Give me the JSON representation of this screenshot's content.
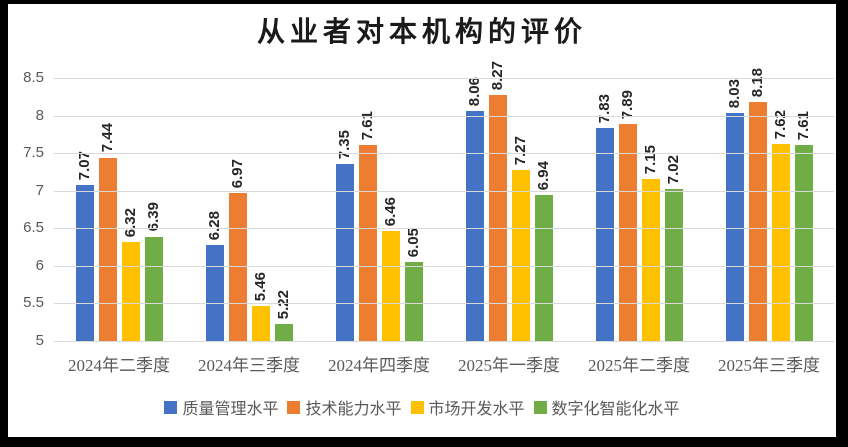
{
  "chart_data": {
    "type": "bar",
    "title": "从业者对本机构的评价",
    "categories": [
      "2024年二季度",
      "2024年三季度",
      "2024年四季度",
      "2025年一季度",
      "2025年二季度",
      "2025年三季度"
    ],
    "series": [
      {
        "name": "质量管理水平",
        "color": "#4472C4",
        "values": [
          7.07,
          6.28,
          7.35,
          8.06,
          7.83,
          8.03
        ]
      },
      {
        "name": "技术能力水平",
        "color": "#ED7D31",
        "values": [
          7.44,
          6.97,
          7.61,
          8.27,
          7.89,
          8.18
        ]
      },
      {
        "name": "市场开发水平",
        "color": "#FFC000",
        "values": [
          6.32,
          5.46,
          6.46,
          7.27,
          7.15,
          7.62
        ]
      },
      {
        "name": "数字化智能化水平",
        "color": "#70AD47",
        "values": [
          6.39,
          5.22,
          6.05,
          6.94,
          7.02,
          7.61
        ]
      }
    ],
    "ylim": [
      5,
      8.5
    ],
    "ytick_step": 0.5,
    "yticks": [
      "8.5",
      "8",
      "7.5",
      "7",
      "6.5",
      "6",
      "5.5",
      "5"
    ],
    "grid": true,
    "legend_position": "bottom",
    "data_labels": true,
    "data_label_rotation": "vertical",
    "colors": {
      "grid": "#D9D9D9",
      "axis_text": "#595959",
      "data_label_text": "#262626",
      "title_text": "#1A1A1A",
      "background": "#FFFFFF",
      "frame": "#000000"
    }
  }
}
